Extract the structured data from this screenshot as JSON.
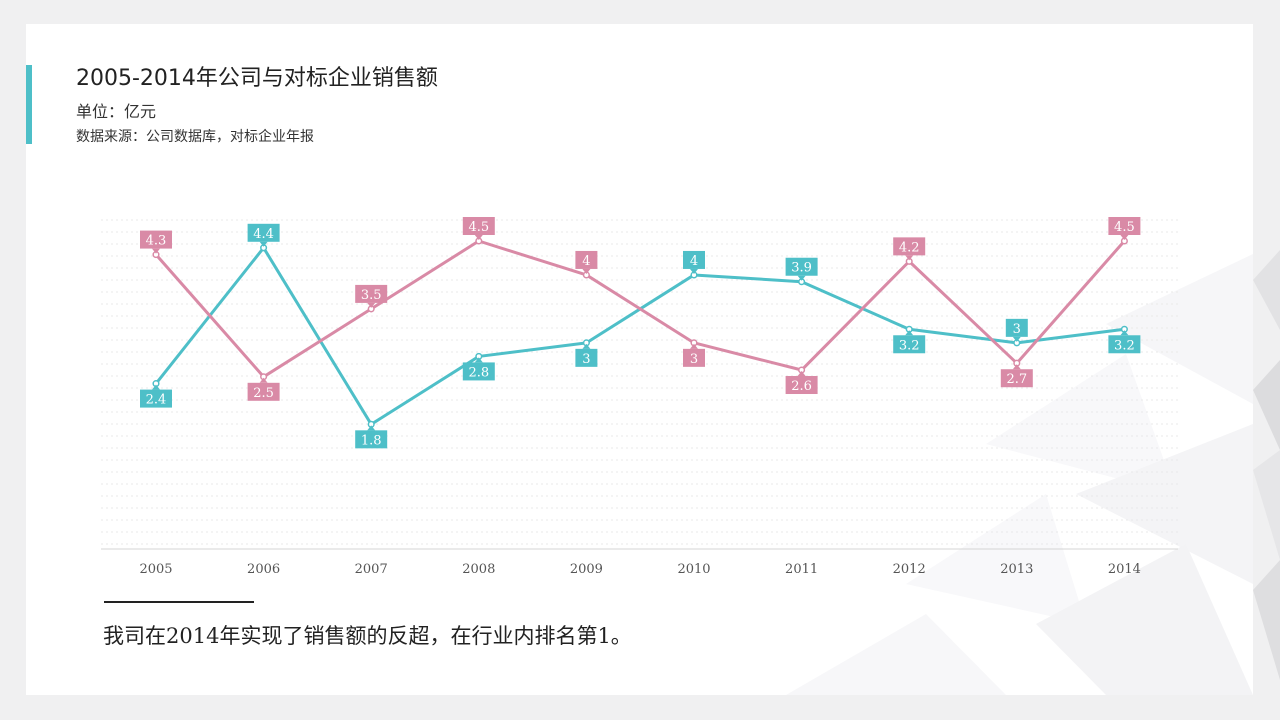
{
  "header": {
    "title": "2005-2014年公司与对标企业销售额",
    "unit": "单位：亿元",
    "source": "数据来源：公司数据库，对标企业年报"
  },
  "colors": {
    "accent": "#4ebfc8",
    "series_company": "#4ebfc8",
    "series_benchmark": "#d98aa6"
  },
  "chart_data": {
    "type": "line",
    "x": [
      "2005",
      "2006",
      "2007",
      "2008",
      "2009",
      "2010",
      "2011",
      "2012",
      "2013",
      "2014"
    ],
    "series": [
      {
        "values": [
          2.4,
          4.4,
          1.8,
          2.8,
          3,
          4,
          3.9,
          3.2,
          3,
          3.2
        ]
      },
      {
        "values": [
          4.3,
          2.5,
          3.5,
          4.5,
          4,
          3,
          2.6,
          4.2,
          2.7,
          4.5
        ]
      }
    ],
    "data_labels": [
      [
        "2.4",
        "4.4",
        "1.8",
        "2.8",
        "3",
        "4",
        "3.9",
        "3.2",
        "3",
        "3.2"
      ],
      [
        "4.3",
        "2.5",
        "3.5",
        "4.5",
        "4",
        "3",
        "2.6",
        "4.2",
        "2.7",
        "4.5"
      ]
    ],
    "ylim": [
      0,
      5
    ],
    "grid": true,
    "legend": "none"
  },
  "conclusion": "我司在2014年实现了销售额的反超，在行业内排名第1。"
}
